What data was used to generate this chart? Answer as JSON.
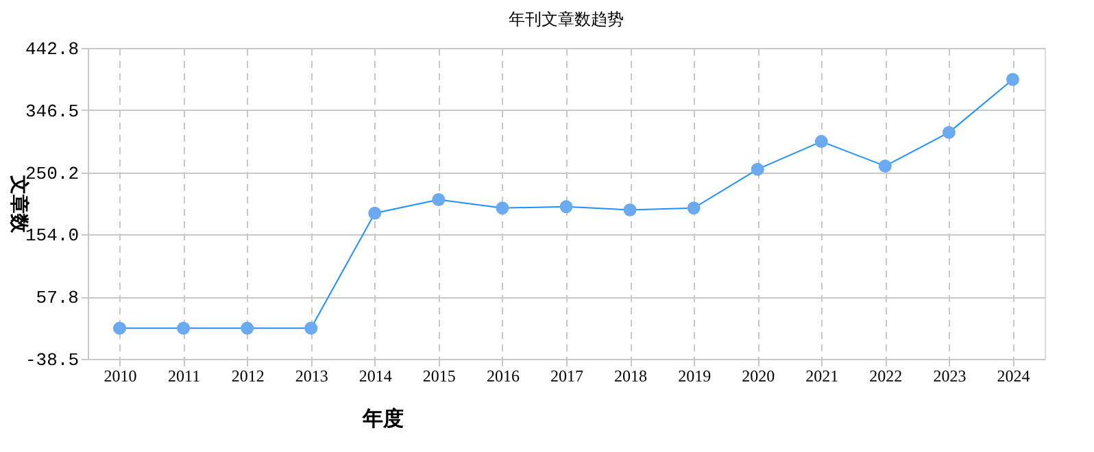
{
  "chart_data": {
    "type": "line",
    "title": "年刊文章数趋势",
    "xlabel": "年度",
    "ylabel": "文章数",
    "categories": [
      "2010",
      "2011",
      "2012",
      "2013",
      "2014",
      "2015",
      "2016",
      "2017",
      "2018",
      "2019",
      "2020",
      "2021",
      "2022",
      "2023",
      "2024"
    ],
    "series": [
      {
        "color": "#1e90ff",
        "values": [
          9,
          9,
          9,
          9,
          187,
          208,
          195,
          197,
          192,
          195,
          255,
          298,
          260,
          312,
          394
        ]
      }
    ],
    "ylim": [
      -38.5,
      442.8
    ],
    "yticks": [
      {
        "value": -38.5,
        "label": "-38.5"
      },
      {
        "value": 57.8,
        "label": "57.8"
      },
      {
        "value": 154.0,
        "label": "154.0"
      },
      {
        "value": 250.2,
        "label": "250.2"
      },
      {
        "value": 346.5,
        "label": "346.5"
      },
      {
        "value": 442.8,
        "label": "442.8"
      }
    ],
    "grid": true,
    "marker": "circle",
    "line_style": "solid"
  }
}
